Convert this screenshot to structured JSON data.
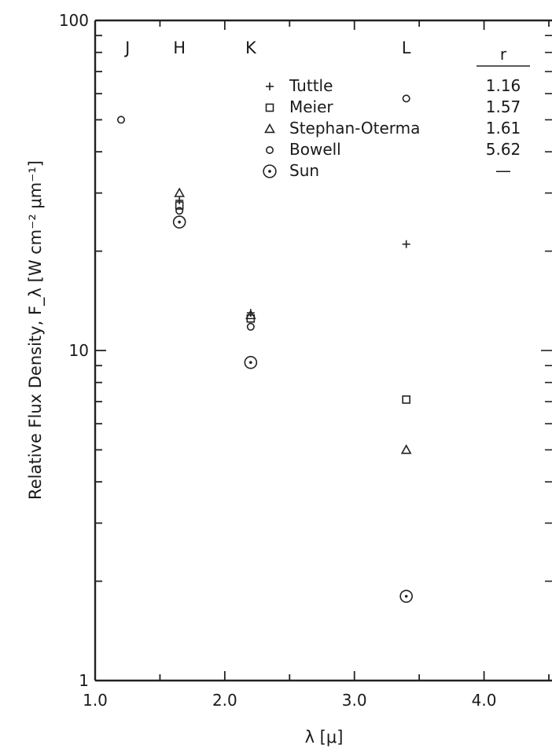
{
  "chart_data": {
    "type": "scatter",
    "title": "",
    "xlabel": "λ [μ]",
    "ylabel": "Relative Flux Density, F_λ [W cm⁻² μm⁻¹]",
    "xlim": [
      1.0,
      4.5
    ],
    "ylim": [
      1,
      100
    ],
    "yscale": "log",
    "grid": false,
    "legend_position": "top-right",
    "x_ticks": [
      {
        "value": 1.0,
        "label": "1.0"
      },
      {
        "value": 2.0,
        "label": "2.0"
      },
      {
        "value": 3.0,
        "label": "3.0"
      },
      {
        "value": 4.0,
        "label": "4.0"
      }
    ],
    "y_ticks": [
      {
        "value": 100,
        "label": "100"
      },
      {
        "value": 10,
        "label": "10"
      },
      {
        "value": 1,
        "label": "1"
      }
    ],
    "band_labels": [
      {
        "x": 1.25,
        "label": "J"
      },
      {
        "x": 1.65,
        "label": "H"
      },
      {
        "x": 2.2,
        "label": "K"
      },
      {
        "x": 3.4,
        "label": "L"
      }
    ],
    "legend_column_header": "r",
    "series": [
      {
        "name": "Tuttle",
        "marker": "plus",
        "r": "1.16",
        "points": [
          [
            1.65,
            28.5
          ],
          [
            2.2,
            13.0
          ],
          [
            3.4,
            21.0
          ]
        ]
      },
      {
        "name": "Meier",
        "marker": "square",
        "r": "1.57",
        "points": [
          [
            1.65,
            27.5
          ],
          [
            2.2,
            12.5
          ],
          [
            3.4,
            7.1
          ]
        ]
      },
      {
        "name": "Stephan-Oterma",
        "marker": "triangle",
        "r": "1.61",
        "points": [
          [
            1.65,
            30.0
          ],
          [
            2.2,
            12.8
          ],
          [
            3.4,
            5.0
          ]
        ]
      },
      {
        "name": "Bowell",
        "marker": "circle",
        "r": "5.62",
        "points": [
          [
            1.2,
            50.0
          ],
          [
            1.65,
            26.5
          ],
          [
            2.2,
            11.8
          ],
          [
            3.4,
            58.0
          ]
        ]
      },
      {
        "name": "Sun",
        "marker": "dot-circle",
        "r": "—",
        "points": [
          [
            1.65,
            24.5
          ],
          [
            2.2,
            9.2
          ],
          [
            3.4,
            1.8
          ]
        ]
      }
    ]
  }
}
